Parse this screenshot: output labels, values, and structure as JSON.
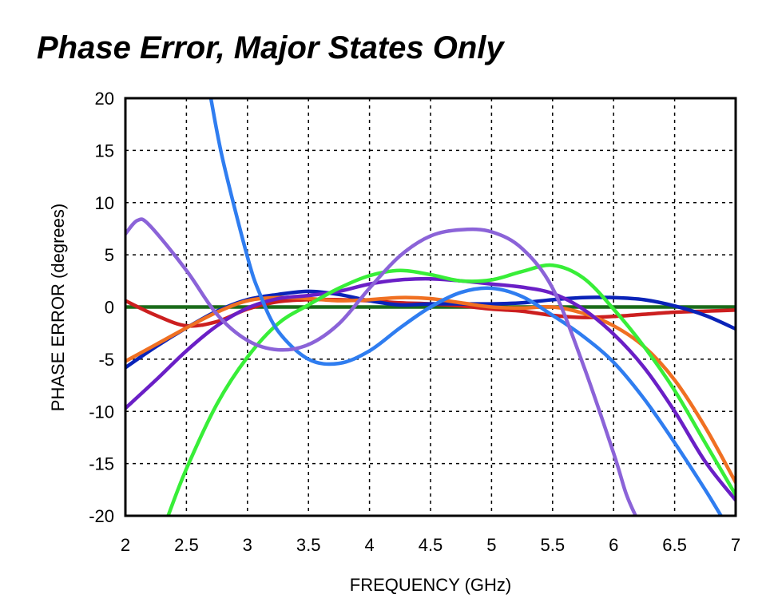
{
  "chart_data": {
    "type": "line",
    "title": "Phase Error, Major States Only",
    "xlabel": "FREQUENCY (GHz)",
    "ylabel": "PHASE ERROR  (degrees)",
    "xlim": [
      2,
      7
    ],
    "ylim": [
      -20,
      20
    ],
    "xticks": [
      2,
      2.5,
      3,
      3.5,
      4,
      4.5,
      5,
      5.5,
      6,
      6.5,
      7
    ],
    "xtick_labels": [
      "2",
      "2.5",
      "3",
      "3.5",
      "4",
      "4.5",
      "5",
      "5.5",
      "6",
      "6.5",
      "7"
    ],
    "yticks": [
      20,
      15,
      10,
      5,
      0,
      -5,
      -10,
      -15,
      -20
    ],
    "ytick_labels": [
      "20",
      "15",
      "10",
      "5",
      "0",
      "-5",
      "-10",
      "-15",
      "-20"
    ],
    "grid": true,
    "legend": "none",
    "series": [
      {
        "color": "#1a6b1a",
        "x": [
          2,
          7
        ],
        "y": [
          0,
          0
        ]
      },
      {
        "color": "#cc1f1f",
        "x": [
          2,
          2.25,
          2.5,
          2.75,
          3,
          3.25,
          3.5,
          3.75,
          4,
          4.25,
          4.5,
          4.75,
          5,
          5.25,
          5.5,
          5.75,
          6,
          6.25,
          6.5,
          6.75,
          7
        ],
        "y": [
          0.6,
          -0.8,
          -1.8,
          -1.4,
          -0.2,
          0.5,
          0.7,
          0.7,
          0.6,
          0.4,
          0.3,
          0.1,
          -0.2,
          -0.4,
          -0.8,
          -1.0,
          -0.9,
          -0.7,
          -0.5,
          -0.4,
          -0.3
        ]
      },
      {
        "color": "#0a23b8",
        "x": [
          2,
          2.25,
          2.5,
          2.75,
          3,
          3.25,
          3.5,
          3.75,
          4,
          4.25,
          4.5,
          4.75,
          5,
          5.25,
          5.5,
          5.75,
          6,
          6.25,
          6.5,
          6.75,
          7
        ],
        "y": [
          -5.8,
          -3.8,
          -2.0,
          -0.4,
          0.7,
          1.2,
          1.5,
          1.2,
          0.6,
          0.2,
          0.3,
          0.3,
          0.3,
          0.4,
          0.7,
          0.9,
          0.9,
          0.7,
          0.1,
          -0.8,
          -2.1
        ]
      },
      {
        "color": "#f07022",
        "x": [
          2,
          2.25,
          2.5,
          2.75,
          3,
          3.25,
          3.5,
          3.75,
          4,
          4.25,
          4.5,
          4.75,
          5,
          5.25,
          5.5,
          5.75,
          6,
          6.25,
          6.5,
          6.75,
          7
        ],
        "y": [
          -5.2,
          -3.6,
          -2.0,
          -0.5,
          0.6,
          0.9,
          0.8,
          0.6,
          0.7,
          0.9,
          0.8,
          0.4,
          0.0,
          -0.1,
          0.0,
          -0.6,
          -1.8,
          -3.8,
          -7.0,
          -11.5,
          -16.8
        ]
      },
      {
        "color": "#6a1fc6",
        "x": [
          2,
          2.25,
          2.5,
          2.75,
          3,
          3.25,
          3.5,
          3.75,
          4,
          4.25,
          4.5,
          4.75,
          5,
          5.25,
          5.5,
          5.75,
          6,
          6.25,
          6.5,
          6.75,
          7
        ],
        "y": [
          -9.7,
          -7.0,
          -4.2,
          -1.8,
          -0.1,
          0.8,
          1.1,
          1.5,
          2.2,
          2.6,
          2.7,
          2.5,
          2.2,
          1.9,
          1.3,
          -0.2,
          -2.6,
          -5.8,
          -10.0,
          -14.8,
          -18.5
        ]
      },
      {
        "color": "#38ee38",
        "x": [
          2.35,
          2.5,
          2.75,
          3,
          3.25,
          3.5,
          3.75,
          4,
          4.25,
          4.5,
          4.75,
          5,
          5.25,
          5.5,
          5.75,
          6,
          6.25,
          6.5,
          6.75,
          7
        ],
        "y": [
          -20,
          -15.5,
          -9.3,
          -4.8,
          -1.6,
          0.2,
          1.8,
          3.0,
          3.5,
          3.1,
          2.5,
          2.6,
          3.4,
          4.0,
          2.8,
          -0.2,
          -3.8,
          -8.0,
          -13.0,
          -18.0
        ]
      },
      {
        "color": "#2f7df0",
        "x": [
          2.7,
          2.8,
          3,
          3.1,
          3.25,
          3.5,
          3.75,
          4,
          4.25,
          4.5,
          4.75,
          5,
          5.25,
          5.5,
          5.75,
          6,
          6.25,
          6.5,
          6.75,
          6.88
        ],
        "y": [
          20,
          14.0,
          4.8,
          1.3,
          -2.3,
          -5.0,
          -5.4,
          -4.2,
          -2.0,
          0.0,
          1.4,
          1.8,
          1.0,
          -0.8,
          -2.8,
          -5.3,
          -8.8,
          -13.0,
          -17.5,
          -20
        ]
      },
      {
        "color": "#8b63d8",
        "x": [
          2,
          2.1,
          2.2,
          2.5,
          2.75,
          3,
          3.25,
          3.5,
          3.75,
          4,
          4.25,
          4.5,
          4.75,
          5,
          5.25,
          5.5,
          5.75,
          6,
          6.1,
          6.18
        ],
        "y": [
          7.0,
          8.3,
          7.8,
          3.5,
          -0.7,
          -3.2,
          -4.1,
          -3.6,
          -1.6,
          1.8,
          4.9,
          6.8,
          7.4,
          7.2,
          5.6,
          1.8,
          -5.5,
          -14.0,
          -17.8,
          -20
        ]
      }
    ]
  }
}
